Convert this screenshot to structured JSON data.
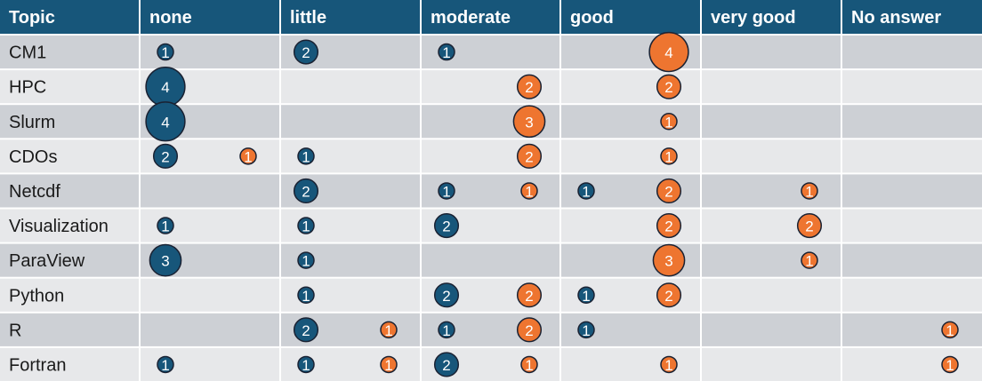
{
  "chart_data": {
    "type": "table",
    "header": [
      "Topic",
      "none",
      "little",
      "moderate",
      "good",
      "very good",
      "No answer"
    ],
    "levels": [
      "none",
      "little",
      "moderate",
      "good",
      "very good",
      "No answer"
    ],
    "topics": [
      "CM1",
      "HPC",
      "Slurm",
      "CDOs",
      "Netcdf",
      "Visualization",
      "ParaView",
      "Python",
      "R",
      "Fortran"
    ],
    "series": [
      {
        "color": "#17567a",
        "values": [
          [
            1,
            2,
            1,
            null,
            null,
            null
          ],
          [
            4,
            null,
            null,
            null,
            null,
            null
          ],
          [
            4,
            null,
            null,
            null,
            null,
            null
          ],
          [
            2,
            1,
            null,
            null,
            null,
            null
          ],
          [
            null,
            2,
            1,
            1,
            null,
            null
          ],
          [
            1,
            1,
            2,
            null,
            null,
            null
          ],
          [
            3,
            1,
            null,
            null,
            null,
            null
          ],
          [
            null,
            1,
            2,
            1,
            null,
            null
          ],
          [
            null,
            2,
            1,
            1,
            null,
            null
          ],
          [
            1,
            1,
            2,
            null,
            null,
            null
          ]
        ]
      },
      {
        "color": "#ee7530",
        "values": [
          [
            null,
            null,
            null,
            4,
            null,
            null
          ],
          [
            null,
            null,
            2,
            2,
            null,
            null
          ],
          [
            null,
            null,
            3,
            1,
            null,
            null
          ],
          [
            1,
            null,
            2,
            1,
            null,
            null
          ],
          [
            null,
            null,
            1,
            2,
            1,
            null
          ],
          [
            null,
            null,
            null,
            2,
            2,
            null
          ],
          [
            null,
            null,
            null,
            3,
            1,
            null
          ],
          [
            null,
            null,
            2,
            2,
            null,
            null
          ],
          [
            null,
            1,
            2,
            null,
            null,
            1
          ],
          [
            null,
            1,
            1,
            1,
            null,
            1
          ]
        ]
      }
    ],
    "colors": {
      "header_bg": "#17567a",
      "row_dark": "#cdd0d5",
      "row_light": "#e7e8ea",
      "bubble_outline": "#1a2233"
    }
  }
}
